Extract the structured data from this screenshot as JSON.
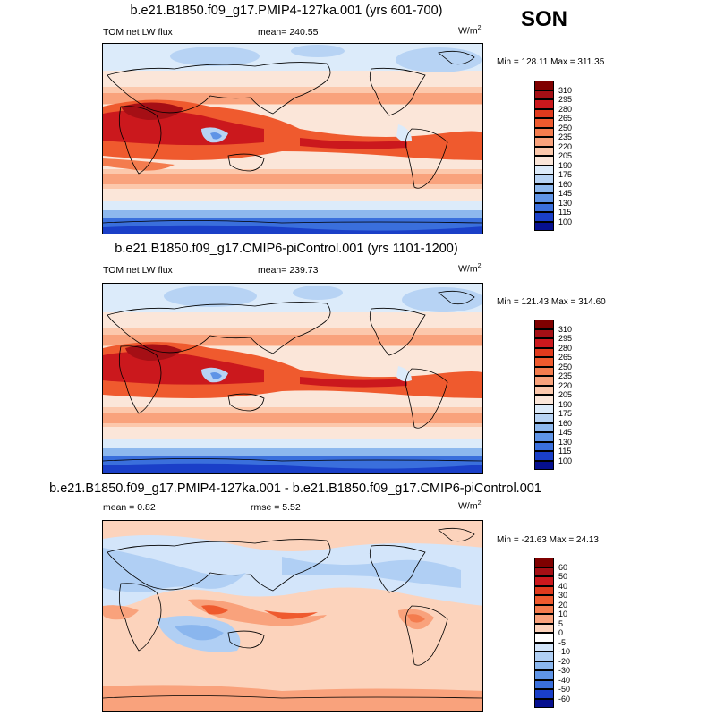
{
  "season": "SON",
  "units_base": "W/m",
  "units_exp": "2",
  "panels": [
    {
      "title": "b.e21.B1850.f09_g17.PMIP4-127ka.001 (yrs 601-700)",
      "left_label": "TOM net LW flux",
      "center_label": "mean= 240.55",
      "minmax": "Min = 128.11 Max = 311.35",
      "colorbar_labels": [
        "310",
        "295",
        "280",
        "265",
        "250",
        "235",
        "220",
        "205",
        "190",
        "175",
        "160",
        "145",
        "130",
        "115",
        "100"
      ],
      "colorbar_colors": [
        "#7f0000",
        "#a50f15",
        "#cb181d",
        "#e03a1d",
        "#ef5a2e",
        "#f47c4e",
        "#f9a27c",
        "#fcc8ac",
        "#fbe6d9",
        "#dcebfa",
        "#b7d3f4",
        "#8db8ee",
        "#5f94e6",
        "#3a6fdc",
        "#1a3fc8",
        "#06108f"
      ]
    },
    {
      "title": "b.e21.B1850.f09_g17.CMIP6-piControl.001 (yrs 1101-1200)",
      "left_label": "TOM net LW flux",
      "center_label": "mean= 239.73",
      "minmax": "Min = 121.43 Max = 314.60",
      "colorbar_labels": [
        "310",
        "295",
        "280",
        "265",
        "250",
        "235",
        "220",
        "205",
        "190",
        "175",
        "160",
        "145",
        "130",
        "115",
        "100"
      ],
      "colorbar_colors": [
        "#7f0000",
        "#a50f15",
        "#cb181d",
        "#e03a1d",
        "#ef5a2e",
        "#f47c4e",
        "#f9a27c",
        "#fcc8ac",
        "#fbe6d9",
        "#dcebfa",
        "#b7d3f4",
        "#8db8ee",
        "#5f94e6",
        "#3a6fdc",
        "#1a3fc8",
        "#06108f"
      ]
    },
    {
      "title": "b.e21.B1850.f09_g17.PMIP4-127ka.001 - b.e21.B1850.f09_g17.CMIP6-piControl.001",
      "left_label": "mean =   0.82",
      "center_label": "rmse =   5.52",
      "minmax": "Min = -21.63 Max =  24.13",
      "colorbar_labels": [
        "60",
        "50",
        "40",
        "30",
        "20",
        "10",
        "5",
        "0",
        "-5",
        "-10",
        "-20",
        "-30",
        "-40",
        "-50",
        "-60"
      ],
      "colorbar_colors": [
        "#7f0000",
        "#a50f15",
        "#cb181d",
        "#e03a1d",
        "#ef5a2e",
        "#f47c4e",
        "#f9a27c",
        "#fcd3bc",
        "#ffffff",
        "#d3e5fa",
        "#b0cff4",
        "#8ab6ee",
        "#5f94e6",
        "#3a6fdc",
        "#1a3fc8",
        "#06108f"
      ]
    }
  ]
}
